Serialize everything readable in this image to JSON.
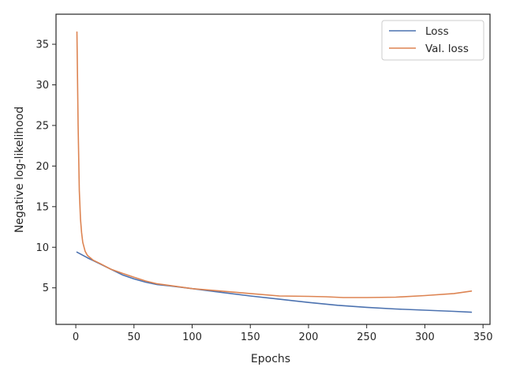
{
  "chart_data": {
    "type": "line",
    "title": "",
    "xlabel": "Epochs",
    "ylabel": "Negative log-likelihood",
    "xlim": [
      -17,
      356
    ],
    "ylim": [
      0.5,
      38.7
    ],
    "xticks": [
      0,
      50,
      100,
      150,
      200,
      250,
      300,
      350
    ],
    "yticks": [
      5,
      10,
      15,
      20,
      25,
      30,
      35
    ],
    "grid": false,
    "legend_position": "top-right",
    "series": [
      {
        "name": "Loss",
        "color": "#4c72b0",
        "x": [
          1,
          10,
          20,
          30,
          40,
          50,
          60,
          70,
          80,
          100,
          125,
          150,
          175,
          200,
          225,
          250,
          275,
          300,
          325,
          340
        ],
        "y": [
          9.4,
          8.7,
          8.0,
          7.3,
          6.6,
          6.1,
          5.7,
          5.4,
          5.25,
          4.9,
          4.45,
          4.0,
          3.6,
          3.2,
          2.85,
          2.6,
          2.4,
          2.25,
          2.1,
          2.0
        ]
      },
      {
        "name": "Val. loss",
        "color": "#dd8452",
        "x": [
          1,
          2,
          3,
          4,
          5,
          6,
          8,
          10,
          15,
          20,
          30,
          40,
          50,
          60,
          70,
          80,
          100,
          125,
          150,
          175,
          200,
          215,
          230,
          250,
          275,
          300,
          325,
          340
        ],
        "y": [
          36.5,
          25.0,
          17.0,
          13.5,
          11.8,
          10.6,
          9.5,
          9.0,
          8.4,
          8.05,
          7.3,
          6.8,
          6.3,
          5.85,
          5.5,
          5.3,
          4.9,
          4.6,
          4.3,
          4.0,
          3.95,
          3.9,
          3.8,
          3.8,
          3.85,
          4.05,
          4.3,
          4.6
        ]
      }
    ]
  }
}
